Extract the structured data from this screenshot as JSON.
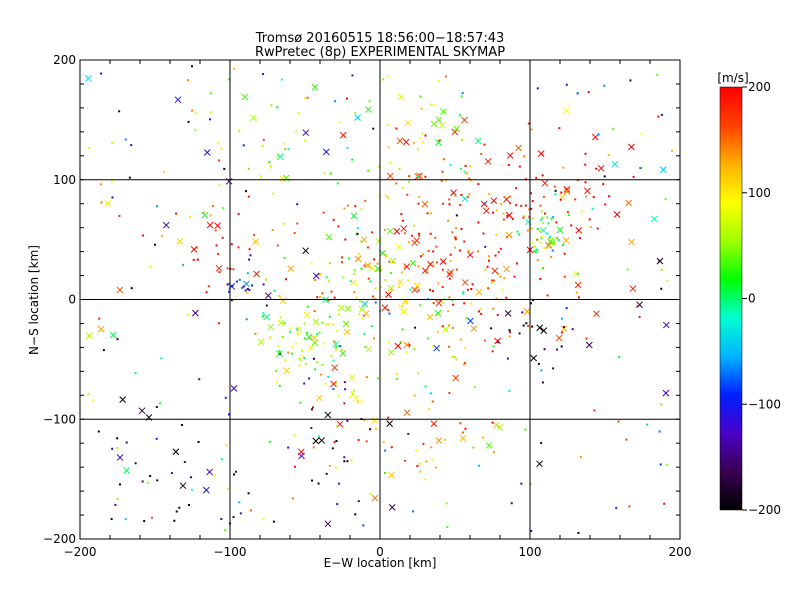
{
  "chart_data": {
    "type": "scatter",
    "title": "Tromsø 20160515 18:56:00−18:57:43",
    "subtitle": "RwPretec (8p) EXPERIMENTAL SKYMAP",
    "xlabel": "E−W location [km]",
    "ylabel": "N−S location [km]",
    "xlim": [
      -200,
      200
    ],
    "ylim": [
      -200,
      200
    ],
    "xticks": [
      -200,
      -100,
      0,
      100,
      200
    ],
    "yticks": [
      -200,
      -100,
      0,
      100,
      200
    ],
    "xtick_labels": [
      "−200",
      "−100",
      "0",
      "100",
      "200"
    ],
    "ytick_labels": [
      "−200",
      "−100",
      "0",
      "100",
      "200"
    ],
    "grid": true,
    "colorbar": {
      "label": "[m/s]",
      "range": [
        -200,
        200
      ],
      "ticks": [
        200,
        100,
        0,
        -100,
        -200
      ],
      "tick_labels": [
        "200",
        "100",
        "0",
        "−100",
        "−200"
      ],
      "colors": [
        "#000000",
        "#3a0050",
        "#4a00c8",
        "#0020ff",
        "#00b4ff",
        "#00ffd0",
        "#00ff00",
        "#a0ff00",
        "#ffff00",
        "#ffb000",
        "#ff4000",
        "#ff0000"
      ]
    },
    "marker_styles": [
      "dot",
      "x"
    ],
    "clusters": [
      {
        "x": 110,
        "y": 55,
        "spread": 8,
        "value": 20,
        "count": 40
      },
      {
        "x": -50,
        "y": -35,
        "spread": 18,
        "value": 60,
        "count": 60
      },
      {
        "x": 0,
        "y": 0,
        "spread": 30,
        "value": 40,
        "count": 80
      },
      {
        "x": 20,
        "y": 15,
        "spread": 35,
        "value": 150,
        "count": 70
      },
      {
        "x": 60,
        "y": 40,
        "spread": 45,
        "value": 190,
        "count": 130
      },
      {
        "x": 120,
        "y": 90,
        "spread": 25,
        "value": 190,
        "count": 50
      },
      {
        "x": -90,
        "y": 15,
        "spread": 8,
        "value": -120,
        "count": 18
      },
      {
        "x": -70,
        "y": 130,
        "spread": 25,
        "value": 50,
        "count": 35
      },
      {
        "x": 30,
        "y": 140,
        "spread": 20,
        "value": 50,
        "count": 30
      },
      {
        "x": 100,
        "y": -30,
        "spread": 12,
        "value": -180,
        "count": 20
      },
      {
        "x": -150,
        "y": -150,
        "spread": 30,
        "value": -170,
        "count": 35
      },
      {
        "x": -40,
        "y": -130,
        "spread": 25,
        "value": -190,
        "count": 25
      },
      {
        "x": 30,
        "y": -120,
        "spread": 30,
        "value": 150,
        "count": 25
      },
      {
        "x": -100,
        "y": 40,
        "spread": 25,
        "value": 180,
        "count": 35
      },
      {
        "x": 0,
        "y": -70,
        "spread": 40,
        "value": 130,
        "count": 45
      },
      {
        "x": 30,
        "y": 80,
        "spread": 50,
        "value": 160,
        "count": 50
      }
    ]
  }
}
